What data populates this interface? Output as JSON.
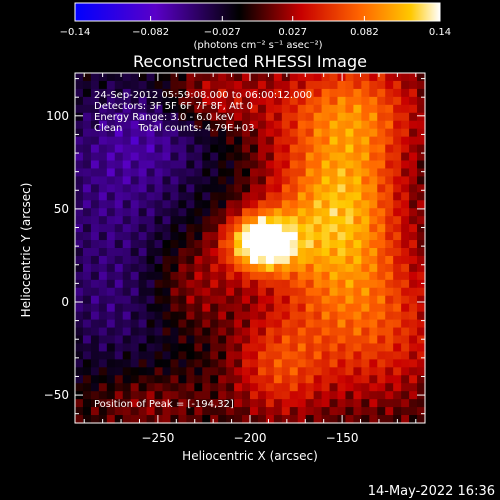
{
  "chart_data": {
    "type": "heatmap",
    "title": "Reconstructed RHESSI Image",
    "xlabel": "Heliocentric X (arcsec)",
    "ylabel": "Heliocentric Y (arcsec)",
    "xlim": [
      -295,
      -105
    ],
    "ylim": [
      -65,
      123
    ],
    "x_ticks": [
      -250,
      -200,
      -150
    ],
    "x_tick_labels": [
      "−250",
      "−200",
      "−150"
    ],
    "y_ticks": [
      -50,
      0,
      50,
      100
    ],
    "y_tick_labels": [
      "−50",
      "0",
      "50",
      "100"
    ],
    "colorbar": {
      "min": -0.14,
      "max": 0.14,
      "ticks": [
        -0.14,
        -0.082,
        -0.027,
        0.027,
        0.082,
        0.14
      ],
      "tick_labels": [
        "−0.14",
        "−0.082",
        "−0.027",
        "0.027",
        "0.082",
        "0.14"
      ],
      "unit_label": "(photons cm⁻² s⁻¹ asec⁻²)",
      "colormap": [
        "#0000ff",
        "#5a00c8",
        "#000000",
        "#c80000",
        "#ff6400",
        "#ffc800",
        "#ffffff"
      ]
    },
    "annotations": [
      "24-Sep-2012 05:59:08.000 to 06:00:12.000",
      "Detectors: 3F 5F 6F 7F 8F, Att 0",
      "Energy Range: 3.0 - 6.0 keV",
      "Clean     Total counts: 4.79E+03"
    ],
    "peak_label": "Position of Peak = [-194,32]",
    "peak": {
      "x": -194,
      "y": 32,
      "value": 0.14
    },
    "sources": [
      {
        "x": -194,
        "y": 32,
        "amp": 0.17,
        "sx": 13,
        "sy": 11
      },
      {
        "x": -165,
        "y": 45,
        "amp": 0.08,
        "sx": 22,
        "sy": 35
      },
      {
        "x": -140,
        "y": 60,
        "amp": 0.07,
        "sx": 20,
        "sy": 45
      },
      {
        "x": -130,
        "y": -15,
        "amp": 0.06,
        "sx": 30,
        "sy": 30
      },
      {
        "x": -185,
        "y": -35,
        "amp": 0.065,
        "sx": 18,
        "sy": 20
      },
      {
        "x": -150,
        "y": 105,
        "amp": 0.05,
        "sx": 35,
        "sy": 18
      },
      {
        "x": -225,
        "y": 110,
        "amp": 0.05,
        "sx": 20,
        "sy": 12
      },
      {
        "x": -230,
        "y": 10,
        "amp": 0.04,
        "sx": 18,
        "sy": 18
      },
      {
        "x": -255,
        "y": -55,
        "amp": 0.03,
        "sx": 25,
        "sy": 12
      },
      {
        "x": -275,
        "y": 60,
        "amp": -0.04,
        "sx": 30,
        "sy": 35
      },
      {
        "x": -250,
        "y": 95,
        "amp": -0.035,
        "sx": 25,
        "sy": 20
      },
      {
        "x": -275,
        "y": -5,
        "amp": -0.03,
        "sx": 25,
        "sy": 25
      }
    ]
  },
  "timestamp": "14-May-2022 16:36"
}
